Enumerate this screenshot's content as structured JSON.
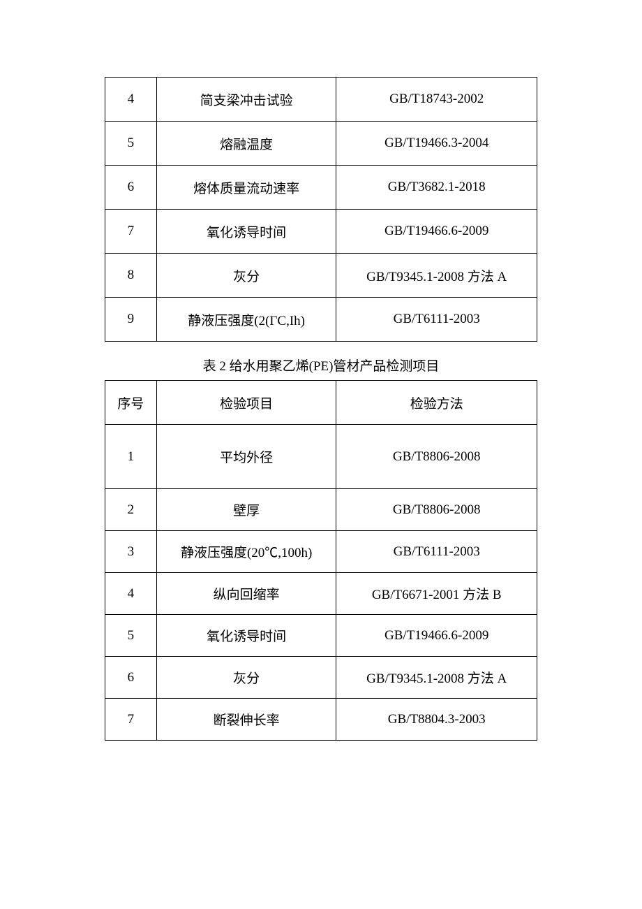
{
  "table1": {
    "border_color": "#000000",
    "background_color": "#ffffff",
    "text_color": "#000000",
    "font_size_pt": 14,
    "rows": [
      {
        "num": "4",
        "item": "简支梁冲击试验",
        "method": "GB/T18743-2002"
      },
      {
        "num": "5",
        "item": "熔融温度",
        "method": "GB/T19466.3-2004"
      },
      {
        "num": "6",
        "item": "熔体质量流动速率",
        "method": "GB/T3682.1-2018"
      },
      {
        "num": "7",
        "item": "氧化诱导时间",
        "method": "GB/T19466.6-2009"
      },
      {
        "num": "8",
        "item": "灰分",
        "method": "GB/T9345.1-2008 方法 A"
      },
      {
        "num": "9",
        "item": "静液压强度(2(ΓC,Ih)",
        "method": "GB/T6111-2003"
      }
    ]
  },
  "table2": {
    "caption": "表 2 给水用聚乙烯(PE)管材产品检测项目",
    "border_color": "#000000",
    "background_color": "#ffffff",
    "text_color": "#000000",
    "font_size_pt": 14,
    "headers": {
      "num": "序号",
      "item": "检验项目",
      "method": "检验方法"
    },
    "rows": [
      {
        "num": "1",
        "item": "平均外径",
        "method": "GB/T8806-2008"
      },
      {
        "num": "2",
        "item": "壁厚",
        "method": "GB/T8806-2008"
      },
      {
        "num": "3",
        "item": "静液压强度(20℃,100h)",
        "method": "GB/T6111-2003"
      },
      {
        "num": "4",
        "item": "纵向回缩率",
        "method": "GB/T6671-2001 方法 B"
      },
      {
        "num": "5",
        "item": "氧化诱导时间",
        "method": "GB/T19466.6-2009"
      },
      {
        "num": "6",
        "item": "灰分",
        "method": "GB/T9345.1-2008 方法 A"
      },
      {
        "num": "7",
        "item": "断裂伸长率",
        "method": "GB/T8804.3-2003"
      }
    ]
  }
}
